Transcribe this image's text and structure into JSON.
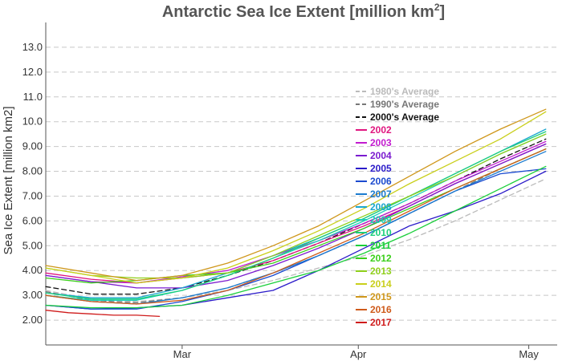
{
  "chart_data": {
    "type": "line",
    "title": "Antarctic Sea Ice Extent [million km",
    "title_sup": "2",
    "title_suffix": "]",
    "ylabel": "Sea Ice Extent [million km2]",
    "xlabel": "",
    "ylim": [
      1.0,
      14.0
    ],
    "xlim": [
      "Feb 5",
      "May 6"
    ],
    "yticks": [
      "2.00",
      "3.00",
      "4.00",
      "5.00",
      "6.00",
      "7.00",
      "8.00",
      "9.00",
      "10.0",
      "11.0",
      "12.0",
      "13.0"
    ],
    "xticks": [
      {
        "label": "Mar",
        "day": 24
      },
      {
        "label": "Apr",
        "day": 55
      },
      {
        "label": "May",
        "day": 85
      }
    ],
    "grid": true,
    "legend_position": "right",
    "series": [
      {
        "name": "1980's Average",
        "color": "#bbbbbb",
        "dashed": true,
        "x": [
          0,
          8,
          16,
          24,
          32,
          40,
          48,
          56,
          64,
          72,
          80,
          88
        ],
        "y": [
          3.2,
          2.85,
          2.75,
          2.9,
          3.2,
          3.6,
          4.1,
          4.6,
          5.25,
          6.0,
          6.85,
          7.7
        ]
      },
      {
        "name": "1990's Average",
        "color": "#777777",
        "dashed": true,
        "x": [
          0,
          8,
          16,
          24,
          32,
          40,
          48,
          56,
          64,
          72,
          80,
          88
        ],
        "y": [
          3.15,
          2.8,
          2.7,
          2.9,
          3.3,
          3.9,
          4.6,
          5.4,
          6.3,
          7.2,
          8.1,
          8.9
        ]
      },
      {
        "name": "2000's Average",
        "color": "#111111",
        "dashed": true,
        "x": [
          0,
          8,
          16,
          24,
          32,
          40,
          48,
          56,
          64,
          72,
          80,
          88
        ],
        "y": [
          3.35,
          3.05,
          3.05,
          3.3,
          3.8,
          4.4,
          5.1,
          5.9,
          6.7,
          7.6,
          8.5,
          9.3
        ]
      },
      {
        "name": "2002",
        "color": "#e0157f",
        "x": [
          0,
          8,
          16,
          24,
          32,
          40,
          48,
          56,
          64,
          72,
          80,
          88
        ],
        "y": [
          3.9,
          3.65,
          3.5,
          3.7,
          3.9,
          4.4,
          5.1,
          5.8,
          6.6,
          7.5,
          8.3,
          9.1
        ]
      },
      {
        "name": "2003",
        "color": "#c21bcf",
        "x": [
          0,
          8,
          16,
          24,
          32,
          40,
          48,
          56,
          64,
          72,
          80,
          88
        ],
        "y": [
          3.8,
          3.55,
          3.5,
          3.75,
          4.0,
          4.6,
          5.2,
          5.9,
          6.7,
          7.6,
          8.4,
          9.2
        ]
      },
      {
        "name": "2004",
        "color": "#7b1bcf",
        "x": [
          0,
          8,
          16,
          24,
          32,
          40,
          48,
          56,
          64,
          72,
          80,
          88
        ],
        "y": [
          3.8,
          3.55,
          3.3,
          3.3,
          3.6,
          4.2,
          4.9,
          5.7,
          6.6,
          7.5,
          8.3,
          9.1
        ]
      },
      {
        "name": "2005",
        "color": "#2b1bc9",
        "x": [
          0,
          8,
          16,
          24,
          32,
          40,
          48,
          56,
          64,
          72,
          80,
          88
        ],
        "y": [
          2.6,
          2.45,
          2.5,
          2.6,
          2.9,
          3.2,
          4.0,
          4.9,
          5.8,
          6.4,
          7.1,
          8.0
        ]
      },
      {
        "name": "2006",
        "color": "#1b4acf",
        "x": [
          0,
          8,
          16,
          24,
          32,
          40,
          48,
          56,
          64,
          72,
          80,
          88
        ],
        "y": [
          2.6,
          2.45,
          2.45,
          2.75,
          3.2,
          3.8,
          4.6,
          5.4,
          6.3,
          7.2,
          7.9,
          8.1
        ]
      },
      {
        "name": "2007",
        "color": "#1b7bcf",
        "x": [
          0,
          8,
          16,
          24,
          32,
          40,
          48,
          56,
          64,
          72,
          80,
          88
        ],
        "y": [
          3.0,
          2.75,
          2.65,
          2.9,
          3.3,
          3.9,
          4.6,
          5.4,
          6.3,
          7.2,
          8.0,
          8.8
        ]
      },
      {
        "name": "2008",
        "color": "#1ba7cf",
        "x": [
          0,
          8,
          16,
          24,
          32,
          40,
          48,
          56,
          64,
          72,
          80,
          88
        ],
        "y": [
          3.1,
          2.9,
          2.9,
          3.3,
          3.9,
          4.6,
          5.3,
          6.1,
          7.0,
          7.9,
          8.8,
          9.7
        ]
      },
      {
        "name": "2009",
        "color": "#1bcfb8",
        "x": [
          0,
          8,
          16,
          24,
          32,
          40,
          48,
          56,
          64,
          72,
          80,
          88
        ],
        "y": [
          3.0,
          2.8,
          2.8,
          3.2,
          3.8,
          4.5,
          5.2,
          6.0,
          6.9,
          7.8,
          8.7,
          9.5
        ]
      },
      {
        "name": "2010",
        "color": "#1bcf7b",
        "x": [
          0,
          8,
          16,
          24,
          32,
          40,
          48,
          56,
          64,
          72,
          80,
          88
        ],
        "y": [
          3.1,
          2.85,
          2.85,
          3.2,
          3.8,
          4.5,
          5.3,
          6.1,
          7.0,
          7.9,
          8.8,
          9.6
        ]
      },
      {
        "name": "2011",
        "color": "#1bcf3b",
        "x": [
          0,
          8,
          16,
          24,
          32,
          40,
          48,
          56,
          64,
          72,
          80,
          88
        ],
        "y": [
          2.6,
          2.5,
          2.5,
          2.6,
          3.0,
          3.5,
          4.0,
          4.7,
          5.5,
          6.4,
          7.3,
          8.2
        ]
      },
      {
        "name": "2012",
        "color": "#3bcf1b",
        "x": [
          0,
          8,
          16,
          24,
          32,
          40,
          48,
          56,
          64,
          72,
          80,
          88
        ],
        "y": [
          3.7,
          3.5,
          3.6,
          3.8,
          3.9,
          4.3,
          5.0,
          5.7,
          6.5,
          7.3,
          8.1,
          8.9
        ]
      },
      {
        "name": "2013",
        "color": "#8fcf1b",
        "x": [
          0,
          8,
          16,
          24,
          32,
          40,
          48,
          56,
          64,
          72,
          80,
          88
        ],
        "y": [
          4.1,
          3.8,
          3.7,
          3.7,
          3.9,
          4.6,
          5.4,
          6.2,
          7.0,
          7.8,
          8.7,
          9.5
        ]
      },
      {
        "name": "2014",
        "color": "#c9cf1b",
        "x": [
          0,
          8,
          16,
          24,
          32,
          40,
          48,
          56,
          64,
          72,
          80,
          88
        ],
        "y": [
          4.1,
          3.8,
          3.5,
          3.7,
          4.1,
          4.8,
          5.6,
          6.5,
          7.5,
          8.4,
          9.3,
          10.4
        ]
      },
      {
        "name": "2015",
        "color": "#cf971b",
        "x": [
          0,
          8,
          16,
          24,
          32,
          40,
          48,
          56,
          64,
          72,
          80,
          88
        ],
        "y": [
          4.2,
          3.9,
          3.6,
          3.8,
          4.3,
          5.0,
          5.8,
          6.8,
          7.8,
          8.8,
          9.7,
          10.5
        ]
      },
      {
        "name": "2016",
        "color": "#cf5b1b",
        "x": [
          0,
          8,
          16,
          24,
          32,
          40,
          48,
          56,
          64,
          72,
          80,
          88
        ],
        "y": [
          3.0,
          2.75,
          2.65,
          2.8,
          3.2,
          3.9,
          4.7,
          5.5,
          6.4,
          7.3,
          8.1,
          8.9
        ]
      },
      {
        "name": "2017",
        "color": "#cf1b1b",
        "x": [
          0,
          4,
          8,
          12,
          16,
          20
        ],
        "y": [
          2.4,
          2.3,
          2.25,
          2.2,
          2.2,
          2.15
        ]
      }
    ]
  }
}
